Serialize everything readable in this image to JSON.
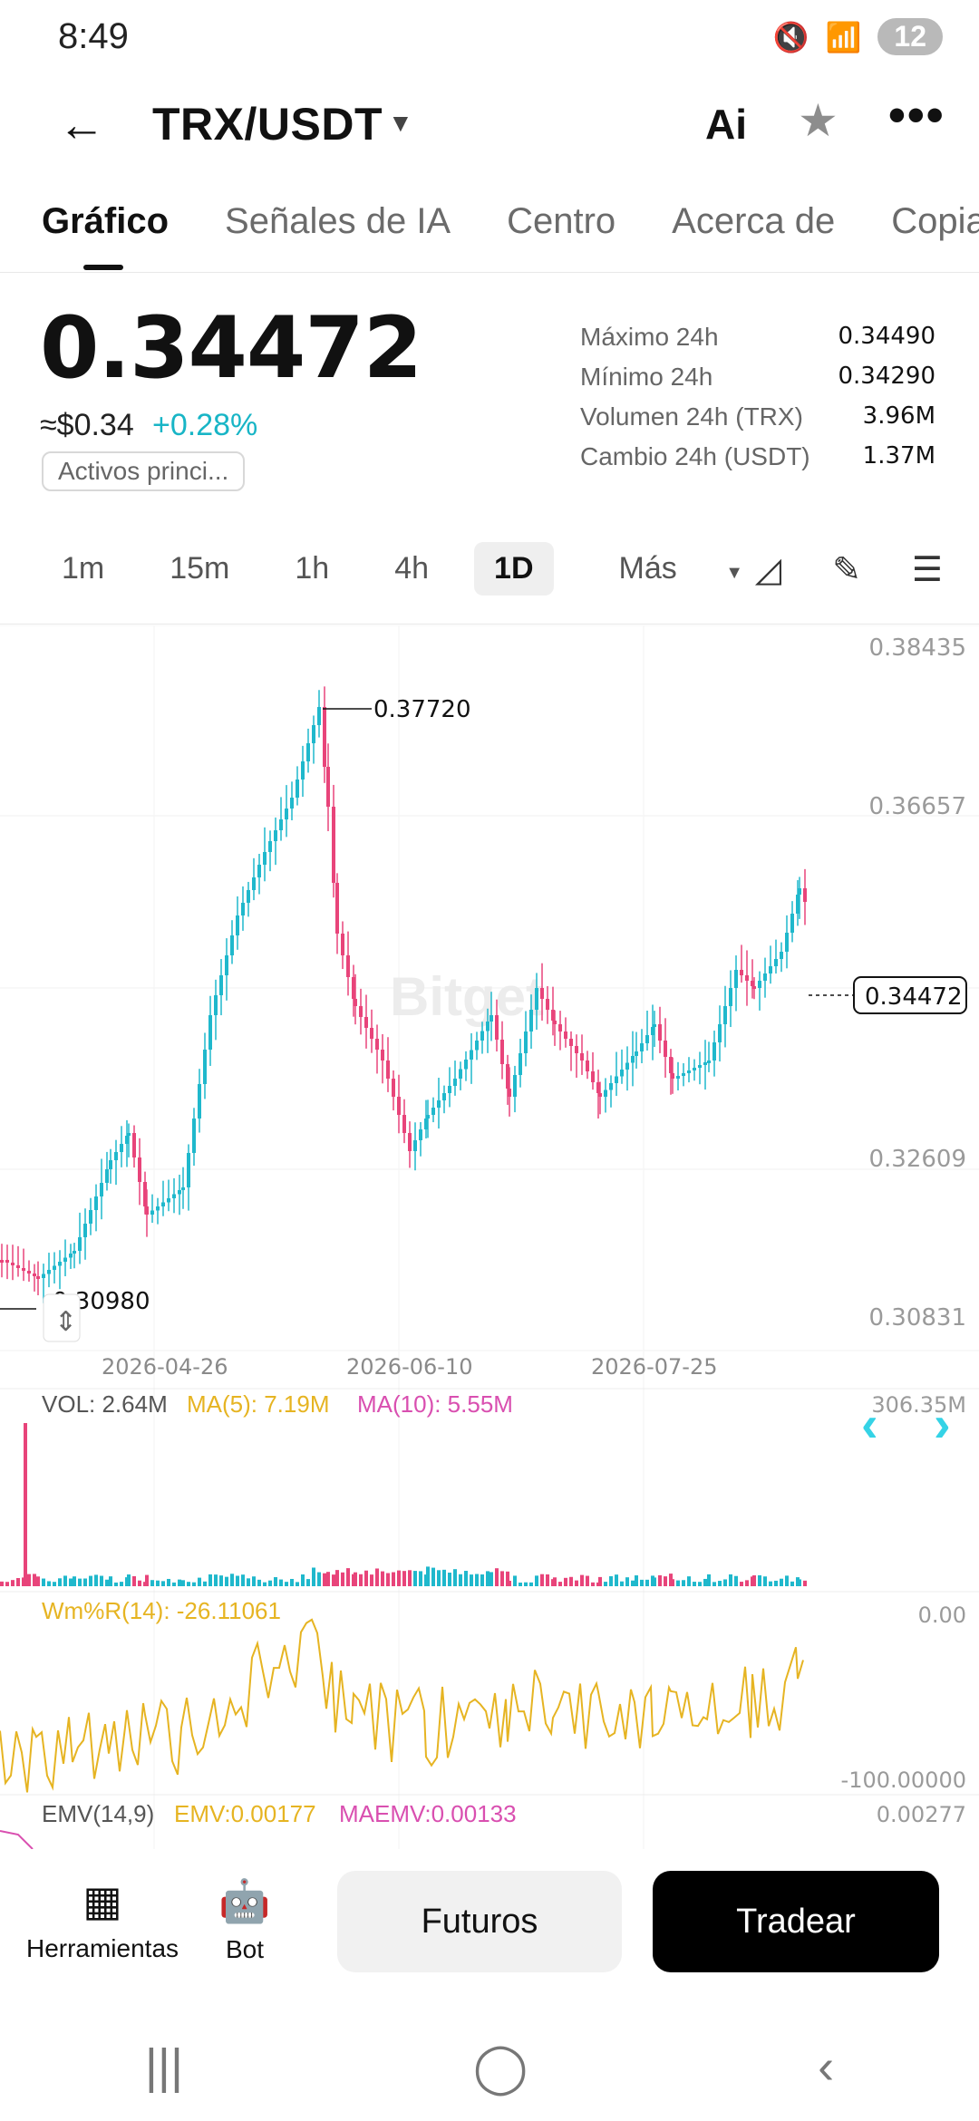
{
  "status": {
    "time": "8:49",
    "badge": "12"
  },
  "header": {
    "pair": "TRX/USDT",
    "ai_label": "Ai"
  },
  "tabs": [
    {
      "label": "Gráfico",
      "active": true
    },
    {
      "label": "Señales de IA"
    },
    {
      "label": "Centro"
    },
    {
      "label": "Acerca de"
    },
    {
      "label": "Copiar"
    }
  ],
  "ticker": {
    "price": "0.34472",
    "usd": "≈$0.34",
    "change": "+0.28%",
    "tag": "Activos princi...",
    "stats": [
      {
        "label": "Máximo 24h",
        "value": "0.34490"
      },
      {
        "label": "Mínimo 24h",
        "value": "0.34290"
      },
      {
        "label": "Volumen 24h (TRX)",
        "value": "3.96M"
      },
      {
        "label": "Cambio 24h (USDT)",
        "value": "1.37M"
      }
    ]
  },
  "intervals": [
    "1m",
    "15m",
    "1h",
    "4h",
    "1D",
    "Más"
  ],
  "selected_interval": "1D",
  "chart": {
    "y_ticks": [
      "0.38435",
      "0.36657",
      "0.32609",
      "0.30831"
    ],
    "x_ticks": [
      "2026-04-26",
      "2026-06-10",
      "2026-07-25"
    ],
    "high_marker": "0.37720",
    "low_marker": "0.30980",
    "last_price": "0.34472",
    "watermark": "Bitget",
    "vol": {
      "label": "VOL: 2.64M",
      "ma5": "MA(5): 7.19M",
      "ma10": "MA(10): 5.55M",
      "max": "306.35M"
    },
    "wr": {
      "label": "Wm%R(14): -26.11061",
      "top": "0.00",
      "bottom": "-100.00000"
    },
    "emv": {
      "label": "EMV(14,9)",
      "emv": "EMV:0.00177",
      "maemv": "MAEMV:0.00133",
      "top": "0.00277"
    },
    "up_color": "#1fb8cc",
    "down_color": "#e8447a"
  },
  "bottom": {
    "tools_label": "Herramientas",
    "bot_label": "Bot",
    "futures_label": "Futuros",
    "trade_label": "Tradear"
  }
}
